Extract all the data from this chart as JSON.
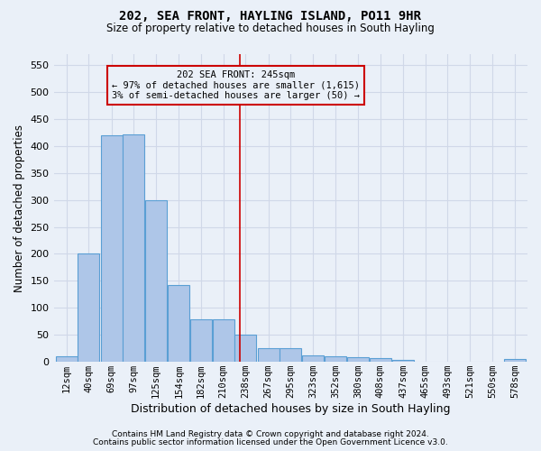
{
  "title": "202, SEA FRONT, HAYLING ISLAND, PO11 9HR",
  "subtitle": "Size of property relative to detached houses in South Hayling",
  "xlabel": "Distribution of detached houses by size in South Hayling",
  "ylabel": "Number of detached properties",
  "footnote1": "Contains HM Land Registry data © Crown copyright and database right 2024.",
  "footnote2": "Contains public sector information licensed under the Open Government Licence v3.0.",
  "annotation_title": "202 SEA FRONT: 245sqm",
  "annotation_line1": "← 97% of detached houses are smaller (1,615)",
  "annotation_line2": "3% of semi-detached houses are larger (50) →",
  "property_size": 245,
  "bar_categories": [
    "12sqm",
    "40sqm",
    "69sqm",
    "97sqm",
    "125sqm",
    "154sqm",
    "182sqm",
    "210sqm",
    "238sqm",
    "267sqm",
    "295sqm",
    "323sqm",
    "352sqm",
    "380sqm",
    "408sqm",
    "437sqm",
    "465sqm",
    "493sqm",
    "521sqm",
    "550sqm",
    "578sqm"
  ],
  "bar_values": [
    10,
    200,
    420,
    422,
    300,
    143,
    78,
    78,
    50,
    25,
    25,
    12,
    10,
    8,
    7,
    4,
    0,
    0,
    0,
    0,
    5
  ],
  "bar_left_edges": [
    12,
    40,
    69,
    97,
    125,
    154,
    182,
    210,
    238,
    267,
    295,
    323,
    352,
    380,
    408,
    437,
    465,
    493,
    521,
    550,
    578
  ],
  "bin_width": 28,
  "bar_color": "#aec6e8",
  "bar_edge_color": "#5a9fd4",
  "vline_x": 245,
  "vline_color": "#cc0000",
  "annotation_box_color": "#cc0000",
  "grid_color": "#d0d8e8",
  "bg_color": "#eaf0f8",
  "ylim": [
    0,
    570
  ],
  "yticks": [
    0,
    50,
    100,
    150,
    200,
    250,
    300,
    350,
    400,
    450,
    500,
    550
  ]
}
